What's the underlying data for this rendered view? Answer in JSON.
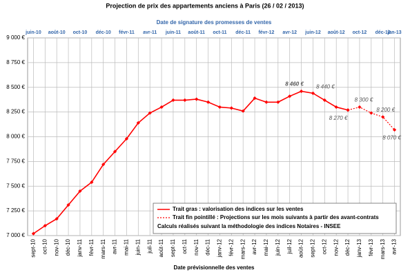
{
  "chart_data": {
    "type": "line",
    "title": "Projection de prix des appartements anciens à Paris (26 / 02 / 2013)",
    "top_axis_label": "Date de signature des promesses de ventes",
    "x_axis_label": "Date prévisionnelle des ventes",
    "categories": [
      "sept-10",
      "oct-10",
      "nov-10",
      "déc-10",
      "janv-11",
      "févr-11",
      "mars-11",
      "avr-11",
      "mai-11",
      "juin-11",
      "juil-11",
      "août-11",
      "sept-11",
      "oct-11",
      "nov-11",
      "déc-11",
      "janv-12",
      "févr-12",
      "mars-12",
      "avr-12",
      "mai-12",
      "juin-12",
      "juil-12",
      "août-12",
      "sept-12",
      "oct-12",
      "nov-12",
      "déc-12",
      "janv-13",
      "févr-13",
      "mars-13",
      "avr-13"
    ],
    "top_categories": [
      "juin-10",
      null,
      "août-10",
      null,
      "oct-10",
      null,
      "déc-10",
      null,
      "févr-11",
      null,
      "avr-11",
      null,
      "juin-11",
      null,
      "août-11",
      null,
      "oct-11",
      null,
      "déc-11",
      null,
      "févr-12",
      null,
      "avr-12",
      null,
      "juin-12",
      null,
      "août-12",
      null,
      "oct-12",
      null,
      "déc-12",
      "jan-13"
    ],
    "series": [
      {
        "name": "Trait gras : valorisation des indices sur les ventes",
        "color": "#ff0000",
        "dashed": false,
        "values": [
          7020,
          7100,
          7170,
          7310,
          7450,
          7540,
          7720,
          7850,
          7980,
          8140,
          8240,
          8300,
          8370,
          8370,
          8380,
          8350,
          8300,
          8290,
          8260,
          8390,
          8350,
          8350,
          8410,
          8460,
          8440,
          8370,
          8300,
          8270,
          null,
          null,
          null,
          null
        ],
        "value_labels": [
          null,
          null,
          null,
          null,
          null,
          null,
          null,
          null,
          null,
          null,
          null,
          null,
          null,
          null,
          null,
          null,
          null,
          null,
          null,
          null,
          null,
          null,
          null,
          "8 460 €",
          "8 440 €",
          null,
          null,
          "8 270 €",
          null,
          null,
          null,
          null
        ]
      },
      {
        "name": "Trait fin pointillé : Projections sur les mois suivants à partir des avant-contrats",
        "color": "#ff0000",
        "dashed": true,
        "values": [
          null,
          null,
          null,
          null,
          null,
          null,
          null,
          null,
          null,
          null,
          null,
          null,
          null,
          null,
          null,
          null,
          null,
          null,
          null,
          null,
          null,
          null,
          null,
          null,
          null,
          null,
          null,
          8270,
          8300,
          8240,
          8200,
          8070
        ],
        "value_labels": [
          null,
          null,
          null,
          null,
          null,
          null,
          null,
          null,
          null,
          null,
          null,
          null,
          null,
          null,
          null,
          null,
          null,
          null,
          null,
          null,
          null,
          null,
          null,
          null,
          null,
          null,
          null,
          null,
          "8 300 €",
          null,
          "8 200 €",
          "8 070 €"
        ]
      }
    ],
    "legend_note": "Calculs réalisés suivant la méthodologie des indices Notaires - INSEE",
    "ylim": [
      7000,
      9000
    ],
    "yticks": [
      {
        "value": 7000,
        "label": "7 000 €"
      },
      {
        "value": 7250,
        "label": "7 250 €"
      },
      {
        "value": 7500,
        "label": "7 500 €"
      },
      {
        "value": 7750,
        "label": "7 750 €"
      },
      {
        "value": 8000,
        "label": "8 000 €"
      },
      {
        "value": 8250,
        "label": "8 250 €"
      },
      {
        "value": 8500,
        "label": "8 500 €"
      },
      {
        "value": 8750,
        "label": "8 750 €"
      },
      {
        "value": 9000,
        "label": "9 000 €"
      }
    ],
    "grid": true
  }
}
